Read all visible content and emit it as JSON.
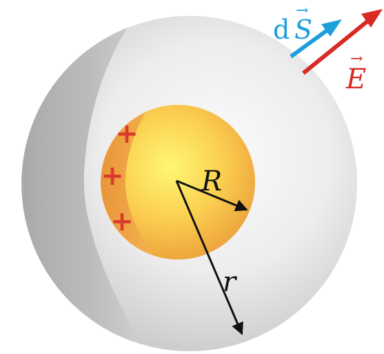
{
  "labels": {
    "inner_radius": "R",
    "outer_radius": "r",
    "surface_element_d": "d",
    "surface_element_S": "S",
    "field": "E",
    "vector_arrow": "→"
  },
  "charges": {
    "symbol": "+",
    "count": 3
  },
  "colors": {
    "outer_sphere_light": "#f4f4f4",
    "outer_sphere_dark": "#c4c4c4",
    "outer_shell_shadow": "#b4b4b4",
    "inner_sphere_light": "#fff46a",
    "inner_sphere_dark": "#eeac3c",
    "inner_shell_orange": "#f0a040",
    "charge_red": "#d93a2b",
    "field_arrow_red": "#d82b24",
    "surface_arrow_blue": "#1d9fdc",
    "radius_arrow_black": "#111111"
  }
}
